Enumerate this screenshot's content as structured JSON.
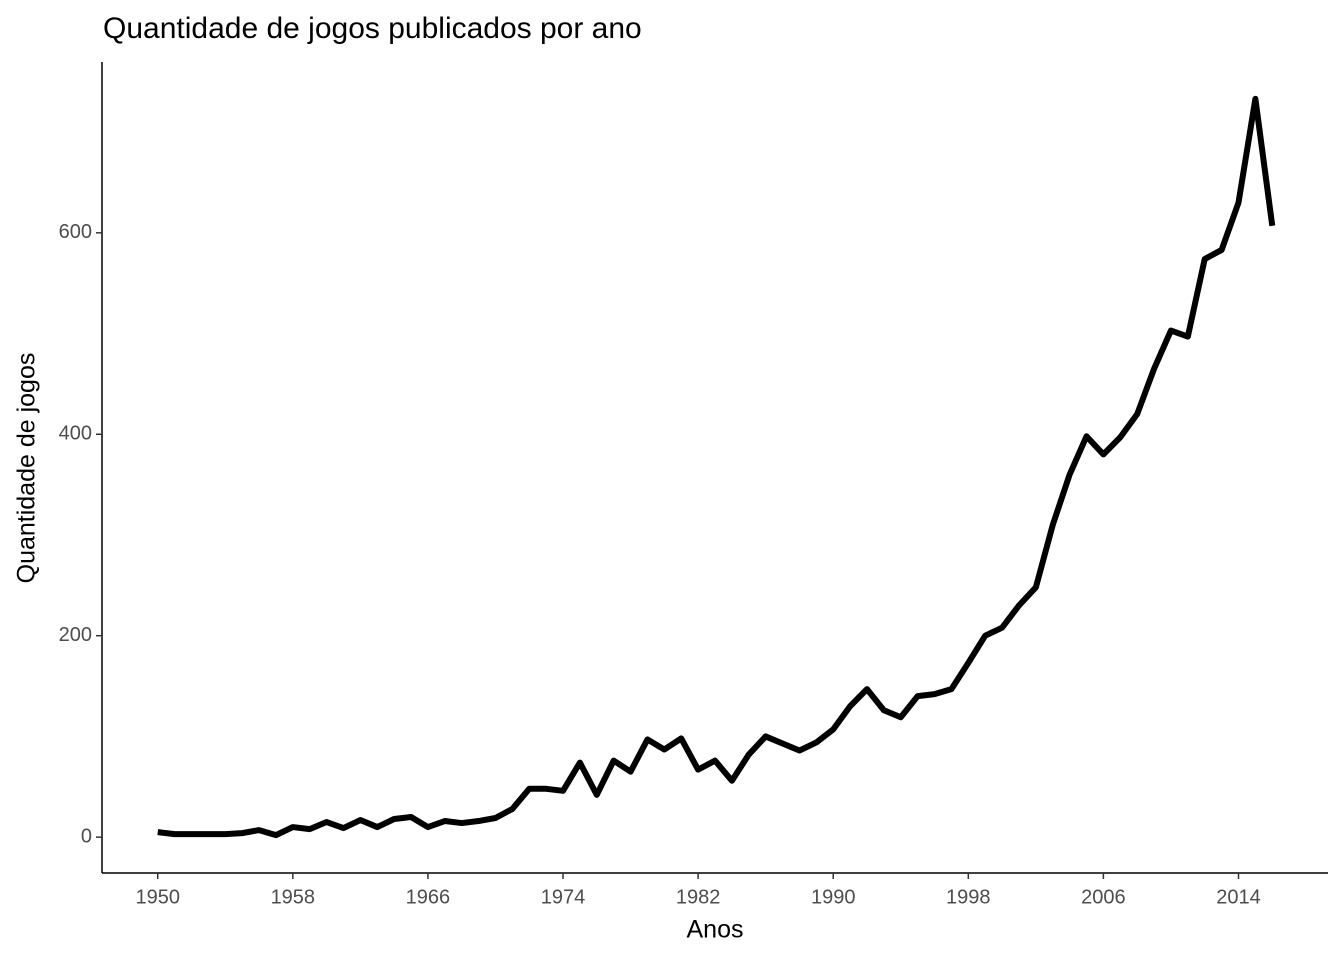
{
  "chart_data": {
    "type": "line",
    "title": "Quantidade de jogos publicados por ano",
    "x_label": "Anos",
    "y_label": "Quantidade de jogos",
    "x": [
      1950,
      1951,
      1952,
      1953,
      1954,
      1955,
      1956,
      1957,
      1958,
      1959,
      1960,
      1961,
      1962,
      1963,
      1964,
      1965,
      1966,
      1967,
      1968,
      1969,
      1970,
      1971,
      1972,
      1973,
      1974,
      1975,
      1976,
      1977,
      1978,
      1979,
      1980,
      1981,
      1982,
      1983,
      1984,
      1985,
      1986,
      1987,
      1988,
      1989,
      1990,
      1991,
      1992,
      1993,
      1994,
      1995,
      1996,
      1997,
      1998,
      1999,
      2000,
      2001,
      2002,
      2003,
      2004,
      2005,
      2006,
      2007,
      2008,
      2009,
      2010,
      2011,
      2012,
      2013,
      2014,
      2015,
      2016
    ],
    "series": [
      {
        "color": "#000000",
        "values": [
          5,
          3,
          3,
          3,
          3,
          4,
          7,
          2,
          10,
          8,
          15,
          9,
          17,
          10,
          18,
          20,
          10,
          16,
          14,
          16,
          19,
          28,
          48,
          48,
          46,
          74,
          42,
          76,
          65,
          97,
          87,
          98,
          67,
          76,
          56,
          82,
          100,
          93,
          86,
          94,
          107,
          130,
          147,
          126,
          119,
          140,
          142,
          147,
          173,
          200,
          208,
          230,
          248,
          310,
          360,
          398,
          380,
          397,
          420,
          465,
          503,
          497,
          574,
          583,
          630,
          733,
          607
        ]
      }
    ],
    "xlim": [
      1946.7,
      2019.3
    ],
    "xticks": [
      1950,
      1958,
      1966,
      1974,
      1982,
      1990,
      1998,
      2006,
      2014
    ],
    "ylim": [
      -35.6,
      769.6
    ],
    "yticks": [
      0,
      200,
      400,
      600
    ],
    "grid": false
  }
}
